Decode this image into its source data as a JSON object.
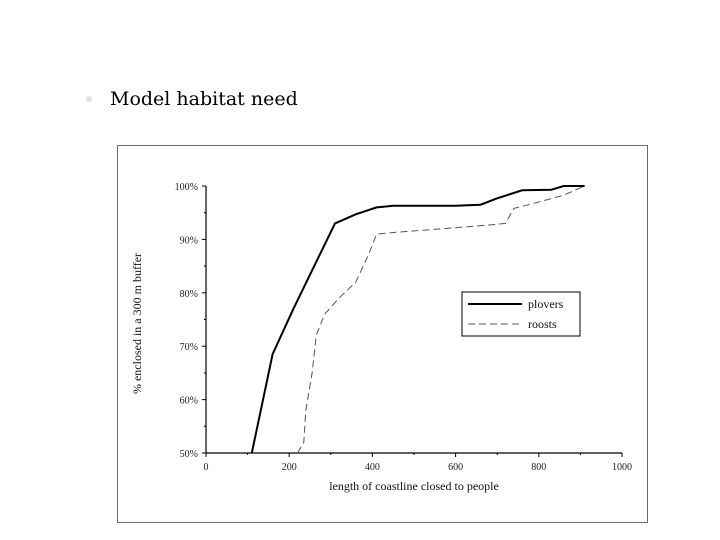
{
  "slide": {
    "heading": "Model habitat need"
  },
  "chart_data": {
    "type": "line",
    "title": "",
    "xlabel": "length of coastline closed to people",
    "ylabel": "% enclosed in a 300 m buffer",
    "xlim": [
      0,
      1000
    ],
    "ylim": [
      50,
      100
    ],
    "x_ticks": [
      0,
      200,
      400,
      600,
      800,
      1000
    ],
    "x_tick_labels": [
      "0",
      "200",
      "400",
      "600",
      "800",
      "1000"
    ],
    "y_ticks": [
      50,
      60,
      70,
      80,
      90,
      100
    ],
    "y_tick_labels": [
      "50%",
      "60%",
      "70%",
      "80%",
      "90%",
      "100%"
    ],
    "grid": false,
    "legend_position": "right",
    "series": [
      {
        "name": "plovers",
        "style": "solid",
        "color": "#000000",
        "points": [
          [
            110,
            50
          ],
          [
            160,
            68.5
          ],
          [
            210,
            77
          ],
          [
            260,
            85
          ],
          [
            310,
            93
          ],
          [
            360,
            94.7
          ],
          [
            410,
            96
          ],
          [
            450,
            96.3
          ],
          [
            600,
            96.3
          ],
          [
            660,
            96.5
          ],
          [
            700,
            97.7
          ],
          [
            760,
            99.2
          ],
          [
            830,
            99.3
          ],
          [
            860,
            100
          ],
          [
            910,
            100
          ]
        ]
      },
      {
        "name": "roosts",
        "style": "dashed",
        "color": "#555555",
        "points": [
          [
            220,
            50
          ],
          [
            235,
            52
          ],
          [
            240,
            58
          ],
          [
            255,
            65
          ],
          [
            265,
            72
          ],
          [
            285,
            76
          ],
          [
            320,
            79
          ],
          [
            360,
            82
          ],
          [
            390,
            87
          ],
          [
            410,
            91
          ],
          [
            450,
            91.3
          ],
          [
            600,
            92.2
          ],
          [
            680,
            92.7
          ],
          [
            720,
            93
          ],
          [
            740,
            95.8
          ],
          [
            800,
            97
          ],
          [
            860,
            98.3
          ],
          [
            910,
            100
          ]
        ]
      }
    ]
  }
}
